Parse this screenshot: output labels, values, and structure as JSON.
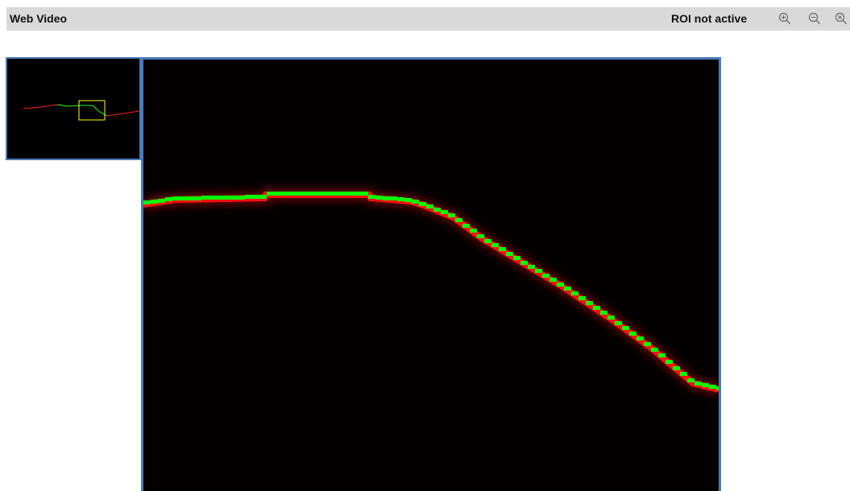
{
  "header": {
    "title": "Web Video",
    "roi_status": "ROI not active",
    "buttons": [
      {
        "name": "zoom-in-button",
        "icon": "zoom-in-icon",
        "symbol": "+"
      },
      {
        "name": "zoom-out-button",
        "icon": "zoom-out-icon",
        "symbol": "-"
      },
      {
        "name": "zoom-reset-button",
        "icon": "zoom-reset-icon",
        "symbol": "x"
      }
    ]
  },
  "colors": {
    "header_bg": "#d9d9d9",
    "panel_border": "#4a7ab8",
    "video_bg": "#050000",
    "line_glow": "#ff1010",
    "line_core": "#00ff00",
    "roi_box": "#ffff00"
  }
}
